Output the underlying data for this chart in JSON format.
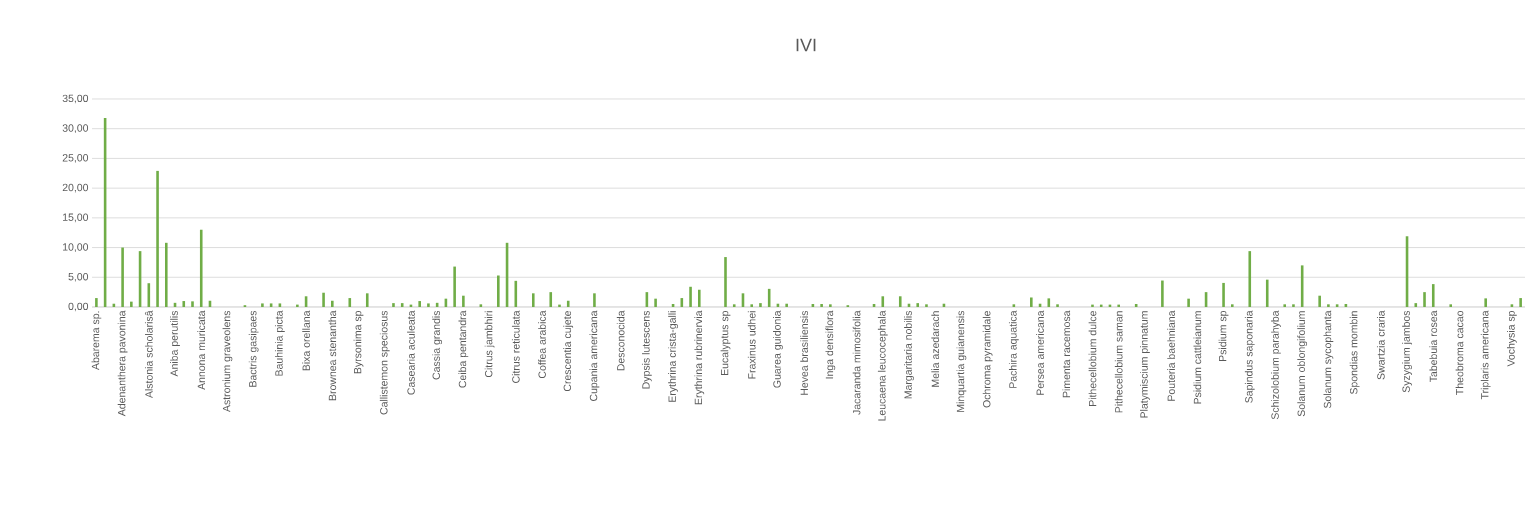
{
  "chart_data": {
    "type": "bar",
    "title": "IVI",
    "categories": [
      "Abarema sp.",
      null,
      null,
      "Adenanthera pavonina",
      null,
      null,
      "Alstonia scholarisâ",
      null,
      null,
      "Aniba perutilis",
      null,
      null,
      "Annona muricata",
      null,
      null,
      "Astronium graveolens",
      null,
      null,
      "Bactris gasipaes",
      null,
      null,
      "Bauhinia picta",
      null,
      null,
      "Bixa orellana",
      null,
      null,
      "Brownea stenantha",
      null,
      null,
      "Byrsonima sp",
      null,
      null,
      "Callistemon speciosus",
      null,
      null,
      "Casearia aculeata",
      null,
      null,
      "Cassia grandis",
      null,
      null,
      "Ceiba pentandra",
      null,
      null,
      "Citrus jambhiri",
      null,
      null,
      "Citrus reticulata",
      null,
      null,
      "Coffea arabica",
      null,
      null,
      "Crescentia cujete",
      null,
      null,
      "Cupania americana",
      null,
      null,
      "Desconocida",
      null,
      null,
      "Dypsis lutescens",
      null,
      null,
      "Erythrina crista-galli",
      null,
      null,
      "Erythrina rubrinervia",
      null,
      null,
      "Eucalyptus sp",
      null,
      null,
      "Fraxinus udhei",
      null,
      null,
      "Guarea guidonia",
      null,
      null,
      "Hevea brasiliensis",
      null,
      null,
      "Inga densiflora",
      null,
      null,
      "Jacaranda mimosifolia",
      null,
      null,
      "Leucaena leucocephala",
      null,
      null,
      "Margaritaria nobilis",
      null,
      null,
      "Melia azedarach",
      null,
      null,
      "Minquartia guianensis",
      null,
      null,
      "Ochroma pyramidale",
      null,
      null,
      "Pachira aquatica",
      null,
      null,
      "Persea americana",
      null,
      null,
      "Pimenta racemosa",
      null,
      null,
      "Pithecellobium dulce",
      null,
      null,
      "Pithecellobium saman",
      null,
      null,
      "Platymiscium pinnatum",
      null,
      null,
      "Pouteria baehniana",
      null,
      null,
      "Psidium cattleianum",
      null,
      null,
      "Psidium sp",
      null,
      null,
      "Sapindus saponaria",
      null,
      null,
      "Schizolobium parahyba",
      null,
      null,
      "Solanum oblongifolium",
      null,
      null,
      "Solanum sycophanta",
      null,
      null,
      "Spondias mombin",
      null,
      null,
      "Swartzia craria",
      null,
      null,
      "Syzygium jambos",
      null,
      null,
      "Tabebuia rosea",
      null,
      null,
      "Theobroma cacao",
      null,
      null,
      "Triplaris americana",
      null,
      null,
      "Vochysia sp",
      null
    ],
    "values": [
      1.5,
      31.8,
      0.55,
      10.0,
      0.9,
      9.4,
      4.0,
      22.9,
      10.8,
      0.7,
      1.0,
      0.95,
      13.0,
      1.05,
      0,
      0,
      0,
      0.3,
      0,
      0.6,
      0.6,
      0.6,
      0,
      0.4,
      1.8,
      0,
      2.4,
      1.05,
      0,
      1.5,
      0,
      2.3,
      0,
      0,
      0.65,
      0.65,
      0.4,
      1.0,
      0.6,
      0.7,
      1.4,
      6.8,
      1.9,
      0,
      0.45,
      0,
      5.3,
      10.8,
      4.4,
      0,
      2.3,
      0,
      2.5,
      0.4,
      1.05,
      0,
      0,
      2.3,
      0,
      0,
      0,
      0,
      0,
      2.5,
      1.4,
      0,
      0.5,
      1.5,
      3.4,
      2.9,
      0,
      0,
      8.4,
      0.45,
      2.3,
      0.45,
      0.65,
      3.05,
      0.55,
      0.55,
      0,
      0,
      0.5,
      0.5,
      0.45,
      0,
      0.3,
      0,
      0,
      0.5,
      1.8,
      0,
      1.8,
      0.55,
      0.65,
      0.45,
      0,
      0.55,
      0,
      0,
      0,
      0,
      0,
      0,
      0,
      0.45,
      0,
      1.6,
      0.55,
      1.45,
      0.45,
      0,
      0,
      0,
      0.4,
      0.4,
      0.4,
      0.4,
      0,
      0.5,
      0,
      0,
      4.45,
      0,
      0,
      1.4,
      0,
      2.5,
      0,
      4.05,
      0.45,
      0,
      9.4,
      0,
      4.6,
      0,
      0.45,
      0.45,
      7.0,
      0,
      1.9,
      0.45,
      0.45,
      0.5,
      0,
      0,
      0,
      0,
      0,
      0,
      11.9,
      0.65,
      2.5,
      3.85,
      0,
      0.45,
      0,
      0,
      0,
      1.45,
      0,
      0,
      0.45,
      1.5
    ],
    "color": "#70ad47",
    "ylim": [
      0,
      35
    ],
    "yticks": [
      {
        "value": 0,
        "label": "0,00"
      },
      {
        "value": 5,
        "label": "5,00"
      },
      {
        "value": 10,
        "label": "10,00"
      },
      {
        "value": 15,
        "label": "15,00"
      },
      {
        "value": 20,
        "label": "20,00"
      },
      {
        "value": 25,
        "label": "25,00"
      },
      {
        "value": 30,
        "label": "30,00"
      },
      {
        "value": 35,
        "label": "35,00"
      }
    ],
    "grid": "y"
  }
}
